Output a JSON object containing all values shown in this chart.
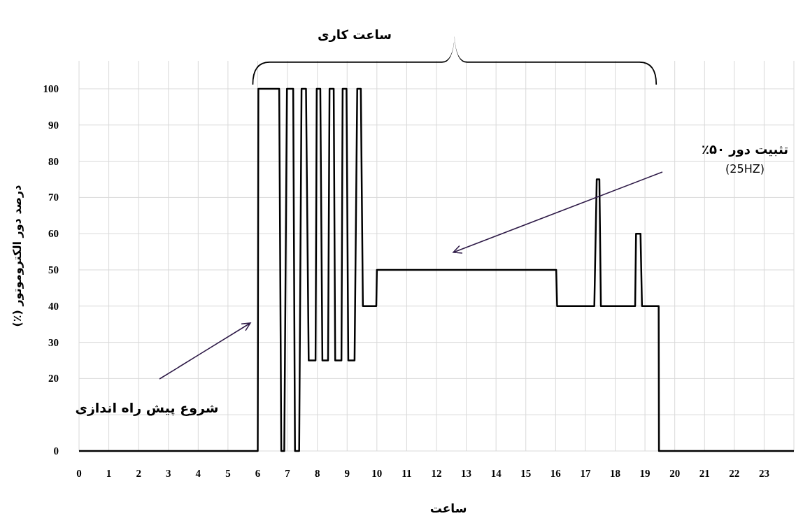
{
  "chart_data": {
    "type": "line",
    "title": "ساعت کاری",
    "xlabel": "ساعت",
    "ylabel": "درصد دور الکتروموتور (٪)",
    "xlim": [
      0,
      24
    ],
    "xticks": [
      0,
      1,
      2,
      3,
      4,
      5,
      6,
      7,
      8,
      9,
      10,
      11,
      12,
      13,
      14,
      15,
      16,
      17,
      18,
      19,
      20,
      21,
      22,
      23
    ],
    "ylim": [
      0,
      100
    ],
    "yticks": [
      0,
      {
        "value": 10,
        "label": null
      },
      20,
      30,
      40,
      50,
      60,
      70,
      80,
      90,
      100
    ],
    "grid": true,
    "line_style": "solid",
    "series": [
      {
        "color": "#000000",
        "x": [
          0,
          6.0,
          6.02,
          6.72,
          6.79,
          6.89,
          6.98,
          7.19,
          7.25,
          7.39,
          7.47,
          7.62,
          7.71,
          7.94,
          7.98,
          8.1,
          8.17,
          8.36,
          8.41,
          8.55,
          8.6,
          8.81,
          8.85,
          8.98,
          9.04,
          9.25,
          9.34,
          9.46,
          9.53,
          9.98,
          10.0,
          16.02,
          16.05,
          17.3,
          17.38,
          17.47,
          17.52,
          18.67,
          18.7,
          18.85,
          18.9,
          19.46,
          19.47,
          24
        ],
        "values": [
          0,
          0,
          100,
          100,
          0,
          0,
          100,
          100,
          0,
          0,
          100,
          100,
          25,
          25,
          100,
          100,
          25,
          25,
          100,
          100,
          25,
          25,
          100,
          100,
          25,
          25,
          100,
          100,
          40,
          40,
          50,
          50,
          40,
          40,
          75,
          75,
          40,
          40,
          60,
          60,
          40,
          40,
          0,
          0
        ]
      }
    ],
    "annotations": [
      "شروع پیش راه اندازی",
      "تثبیت دور ۵۰٪\n(25HZ)"
    ]
  }
}
